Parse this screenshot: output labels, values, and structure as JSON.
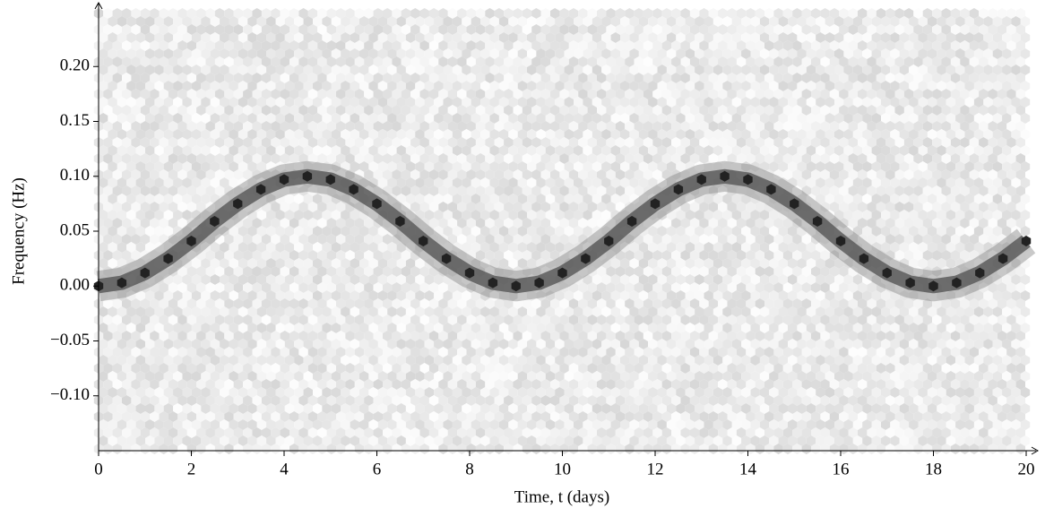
{
  "chart_data": {
    "type": "hexbin",
    "xlabel": "Time, t (days)",
    "ylabel": "Frequency (Hz)",
    "x": [
      0,
      0.5,
      1,
      1.5,
      2,
      2.5,
      3,
      3.5,
      4,
      4.5,
      5,
      5.5,
      6,
      6.5,
      7,
      7.5,
      8,
      8.5,
      9,
      9.5,
      10,
      10.5,
      11,
      11.5,
      12,
      12.5,
      13,
      13.5,
      14,
      14.5,
      15,
      15.5,
      16,
      16.5,
      17,
      17.5,
      18,
      18.5,
      19,
      19.5,
      20
    ],
    "values": [
      0,
      0.003,
      0.012,
      0.025,
      0.041,
      0.059,
      0.075,
      0.088,
      0.097,
      0.1,
      0.097,
      0.088,
      0.075,
      0.059,
      0.041,
      0.025,
      0.012,
      0.003,
      0,
      0.003,
      0.012,
      0.025,
      0.041,
      0.059,
      0.075,
      0.088,
      0.097,
      0.1,
      0.097,
      0.088,
      0.075,
      0.059,
      0.041,
      0.025,
      0.012,
      0.003,
      0,
      0.003,
      0.012,
      0.025,
      0.041
    ],
    "color": "#222222",
    "xlim": [
      0,
      20
    ],
    "xticks": [
      0,
      2,
      4,
      6,
      8,
      10,
      12,
      14,
      16,
      18,
      20
    ],
    "ylim": [
      -0.15,
      0.25
    ],
    "yticks": [
      {
        "value": -0.1,
        "label": "−0.10"
      },
      {
        "value": -0.05,
        "label": "−0.05"
      },
      {
        "value": 0,
        "label": "0.00"
      },
      {
        "value": 0.05,
        "label": "0.05"
      },
      {
        "value": 0.1,
        "label": "0.10"
      },
      {
        "value": 0.15,
        "label": "0.15"
      },
      {
        "value": 0.2,
        "label": "0.20"
      }
    ]
  }
}
